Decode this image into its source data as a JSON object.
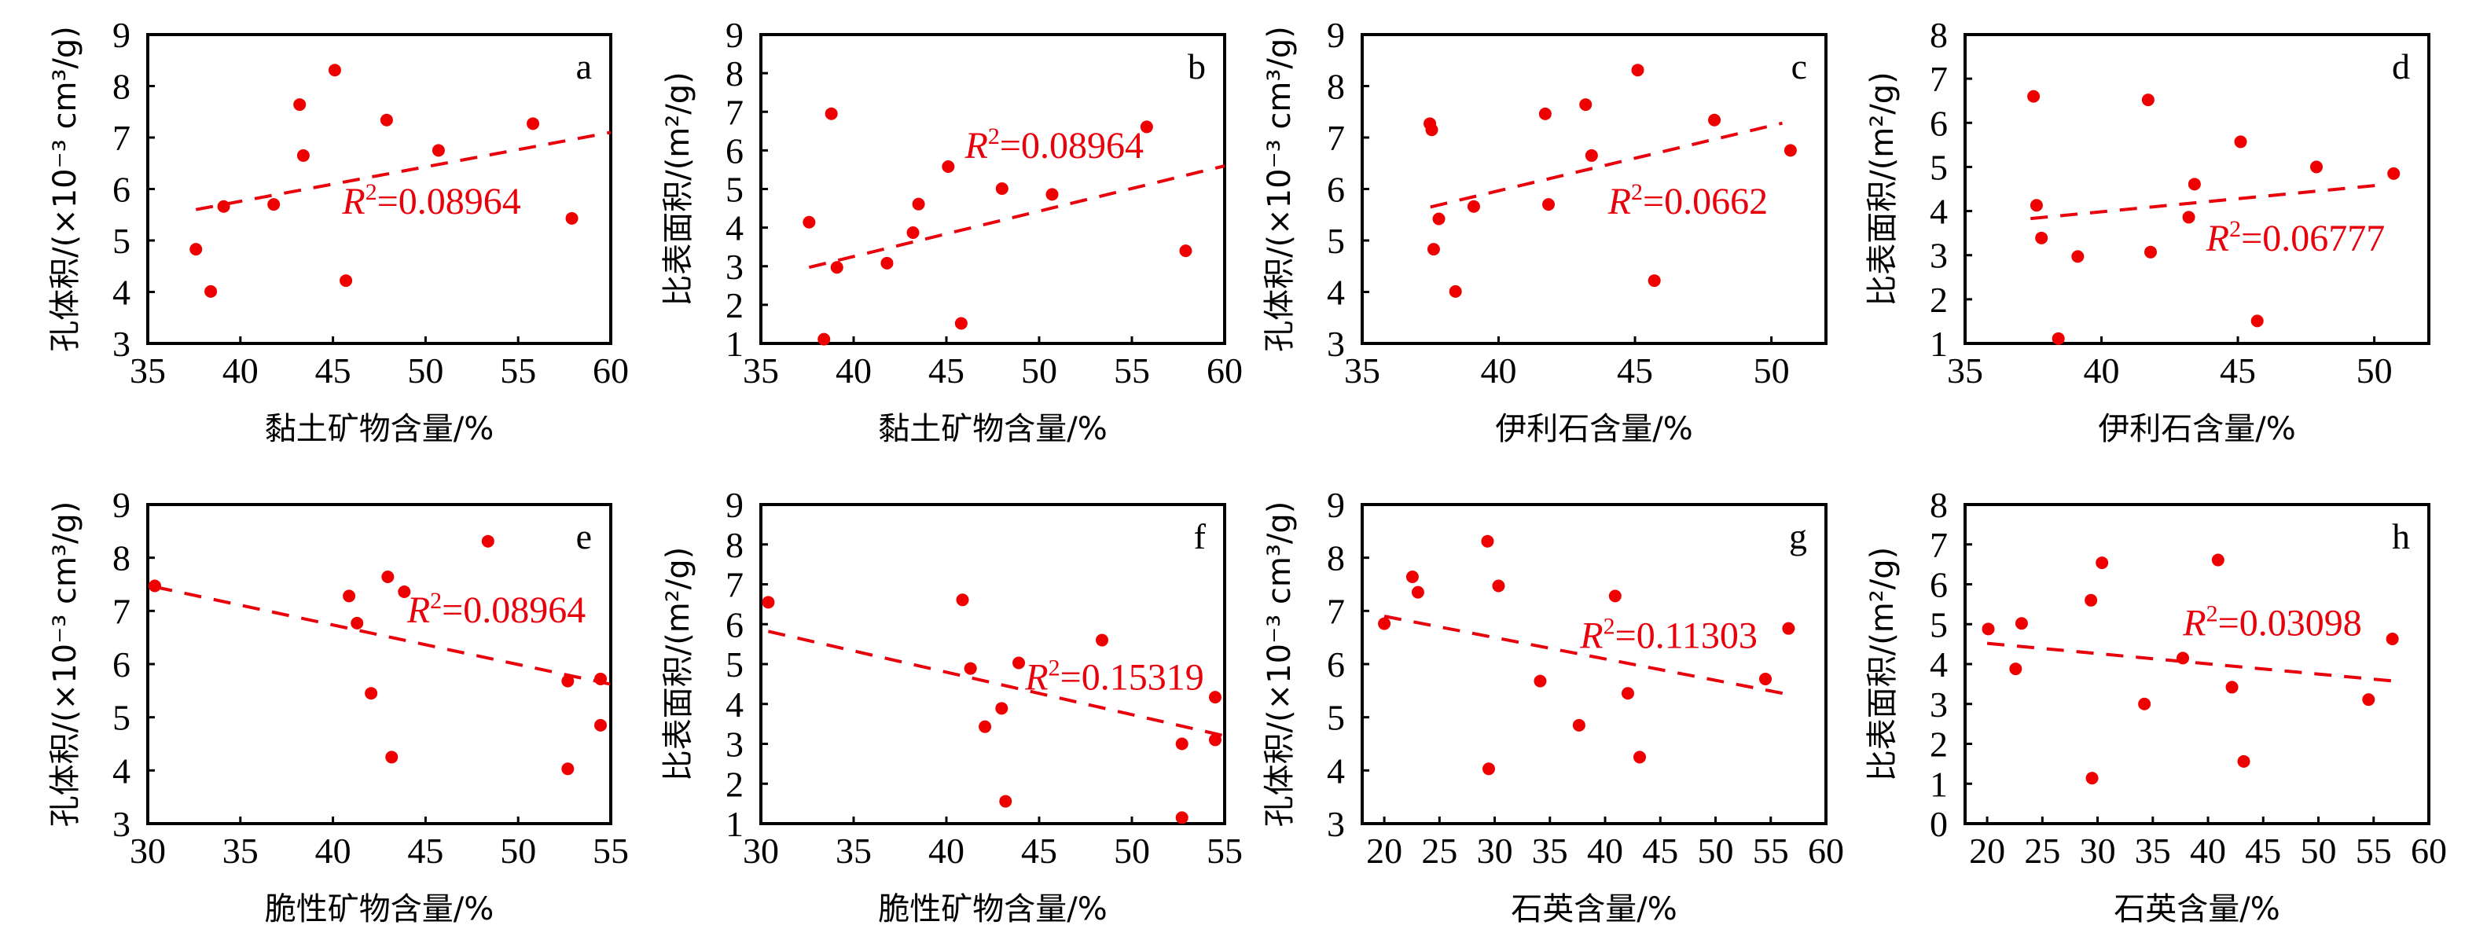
{
  "chart_data": [
    {
      "id": "a",
      "type": "scatter",
      "panel_label": "a",
      "xlabel": "黏土矿物含量/%",
      "ylabel": "孔体积/(×10⁻³ cm³/g)",
      "xlim": [
        35,
        60
      ],
      "ylim": [
        3,
        9
      ],
      "xticks": [
        35,
        40,
        45,
        50,
        55,
        60
      ],
      "yticks": [
        3,
        4,
        5,
        6,
        7,
        8,
        9
      ],
      "r2_text": "R²=0.08964",
      "r2_prefix": "R",
      "r2_sup": "2",
      "r2_value": "=0.08964",
      "trendline": {
        "x": [
          37.6,
          60
        ],
        "y": [
          5.6,
          7.1
        ]
      },
      "points": [
        [
          37.6,
          4.83
        ],
        [
          38.4,
          4.01
        ],
        [
          39.1,
          5.66
        ],
        [
          41.8,
          5.7
        ],
        [
          43.2,
          7.64
        ],
        [
          43.4,
          6.65
        ],
        [
          45.1,
          8.31
        ],
        [
          45.7,
          4.22
        ],
        [
          47.9,
          7.34
        ],
        [
          50.7,
          6.75
        ],
        [
          55.8,
          7.27
        ],
        [
          57.9,
          5.43
        ]
      ]
    },
    {
      "id": "b",
      "type": "scatter",
      "panel_label": "b",
      "xlabel": "黏土矿物含量/%",
      "ylabel": "比表面积/(m²/g)",
      "xlim": [
        35,
        60
      ],
      "ylim": [
        1,
        9
      ],
      "xticks": [
        35,
        40,
        45,
        50,
        55,
        60
      ],
      "yticks": [
        1,
        2,
        3,
        4,
        5,
        6,
        7,
        8,
        9
      ],
      "r2_text": "R²=0.08964",
      "r2_prefix": "R",
      "r2_sup": "2",
      "r2_value": "=0.08964",
      "trendline": {
        "x": [
          37.6,
          60
        ],
        "y": [
          2.97,
          5.6
        ]
      },
      "points": [
        [
          37.6,
          4.14
        ],
        [
          38.4,
          1.11
        ],
        [
          38.8,
          6.95
        ],
        [
          39.1,
          2.97
        ],
        [
          41.8,
          3.08
        ],
        [
          43.2,
          3.87
        ],
        [
          43.5,
          4.61
        ],
        [
          45.1,
          5.58
        ],
        [
          45.8,
          1.52
        ],
        [
          48.0,
          5.01
        ],
        [
          50.7,
          4.86
        ],
        [
          55.8,
          6.61
        ],
        [
          57.9,
          3.4
        ]
      ]
    },
    {
      "id": "c",
      "type": "scatter",
      "panel_label": "c",
      "xlabel": "伊利石含量/%",
      "ylabel": "孔体积/(×10⁻³ cm³/g)",
      "xlim": [
        35,
        52
      ],
      "ylim": [
        3,
        9
      ],
      "xticks": [
        35,
        40,
        45,
        50
      ],
      "yticks": [
        3,
        4,
        5,
        6,
        7,
        8,
        9
      ],
      "r2_text": "R²=0.0662",
      "r2_prefix": "R",
      "r2_sup": "2",
      "r2_value": "=0.0662",
      "trendline": {
        "x": [
          37.5,
          50.4
        ],
        "y": [
          5.65,
          7.28
        ]
      },
      "points": [
        [
          37.48,
          7.27
        ],
        [
          37.55,
          7.15
        ],
        [
          37.81,
          5.42
        ],
        [
          37.62,
          4.83
        ],
        [
          38.42,
          4.01
        ],
        [
          39.09,
          5.66
        ],
        [
          41.71,
          7.46
        ],
        [
          41.83,
          5.7
        ],
        [
          43.19,
          7.64
        ],
        [
          43.41,
          6.65
        ],
        [
          45.1,
          8.31
        ],
        [
          45.71,
          4.22
        ],
        [
          47.91,
          7.34
        ],
        [
          50.7,
          6.75
        ]
      ]
    },
    {
      "id": "d",
      "type": "scatter",
      "panel_label": "d",
      "xlabel": "伊利石含量/%",
      "ylabel": "比表面积/(m²/g)",
      "xlim": [
        35,
        52
      ],
      "ylim": [
        1,
        8
      ],
      "xticks": [
        35,
        40,
        45,
        50
      ],
      "yticks": [
        1,
        2,
        3,
        4,
        5,
        6,
        7,
        8
      ],
      "r2_text": "R²=0.06777",
      "r2_prefix": "R",
      "r2_sup": "2",
      "r2_value": "=0.06777",
      "trendline": {
        "x": [
          37.4,
          50.4
        ],
        "y": [
          3.83,
          4.6
        ]
      },
      "points": [
        [
          37.51,
          6.6
        ],
        [
          37.62,
          4.13
        ],
        [
          37.8,
          3.39
        ],
        [
          38.42,
          1.11
        ],
        [
          39.13,
          2.97
        ],
        [
          41.71,
          6.52
        ],
        [
          41.8,
          3.07
        ],
        [
          43.2,
          3.86
        ],
        [
          43.41,
          4.61
        ],
        [
          45.1,
          5.57
        ],
        [
          45.71,
          1.51
        ],
        [
          47.88,
          5.0
        ],
        [
          50.71,
          4.85
        ]
      ]
    },
    {
      "id": "e",
      "type": "scatter",
      "panel_label": "e",
      "xlabel": "脆性矿物含量/%",
      "ylabel": "孔体积/(×10⁻³ cm³/g)",
      "xlim": [
        30,
        55
      ],
      "ylim": [
        3,
        9
      ],
      "xticks": [
        30,
        35,
        40,
        45,
        50,
        55
      ],
      "yticks": [
        3,
        4,
        5,
        6,
        7,
        8,
        9
      ],
      "r2_text": "R²=0.08964",
      "r2_prefix": "R",
      "r2_sup": "2",
      "r2_value": "=0.08964",
      "trendline": {
        "x": [
          30.4,
          55
        ],
        "y": [
          7.45,
          5.62
        ]
      },
      "points": [
        [
          30.38,
          7.47
        ],
        [
          40.87,
          7.28
        ],
        [
          41.3,
          6.77
        ],
        [
          42.06,
          5.45
        ],
        [
          42.96,
          7.64
        ],
        [
          43.17,
          4.25
        ],
        [
          43.85,
          7.36
        ],
        [
          48.37,
          8.31
        ],
        [
          52.68,
          5.68
        ],
        [
          52.68,
          4.03
        ],
        [
          54.45,
          5.72
        ],
        [
          54.45,
          4.85
        ]
      ]
    },
    {
      "id": "f",
      "type": "scatter",
      "panel_label": "f",
      "xlabel": "脆性矿物含量/%",
      "ylabel": "比表面积/(m²/g)",
      "xlim": [
        30,
        55
      ],
      "ylim": [
        1,
        9
      ],
      "xticks": [
        30,
        35,
        40,
        45,
        50,
        55
      ],
      "yticks": [
        1,
        2,
        3,
        4,
        5,
        6,
        7,
        8,
        9
      ],
      "r2_text": "R²=0.15319",
      "r2_prefix": "R",
      "r2_sup": "2",
      "r2_value": "=0.15319",
      "trendline": {
        "x": [
          30.4,
          55
        ],
        "y": [
          5.82,
          3.2
        ]
      },
      "points": [
        [
          30.4,
          6.55
        ],
        [
          40.87,
          6.61
        ],
        [
          41.3,
          4.89
        ],
        [
          42.08,
          3.43
        ],
        [
          42.98,
          3.89
        ],
        [
          43.19,
          1.56
        ],
        [
          43.9,
          5.03
        ],
        [
          48.39,
          5.6
        ],
        [
          52.7,
          3.0
        ],
        [
          52.7,
          1.15
        ],
        [
          54.49,
          4.17
        ],
        [
          54.49,
          3.1
        ]
      ]
    },
    {
      "id": "g",
      "type": "scatter",
      "panel_label": "g",
      "xlabel": "石英含量/%",
      "ylabel": "孔体积/(×10⁻³ cm³/g)",
      "xlim": [
        18,
        60
      ],
      "ylim": [
        3,
        9
      ],
      "xticks": [
        20,
        25,
        30,
        35,
        40,
        45,
        50,
        55,
        60
      ],
      "yticks": [
        3,
        4,
        5,
        6,
        7,
        8,
        9
      ],
      "r2_text": "R²=0.11303",
      "r2_prefix": "R",
      "r2_sup": "2",
      "r2_value": "=0.11303",
      "trendline": {
        "x": [
          20.0,
          56.6
        ],
        "y": [
          6.9,
          5.43
        ]
      },
      "points": [
        [
          20.0,
          6.76
        ],
        [
          22.55,
          7.64
        ],
        [
          23.05,
          7.35
        ],
        [
          29.35,
          8.31
        ],
        [
          29.46,
          4.03
        ],
        [
          30.35,
          7.47
        ],
        [
          34.12,
          5.68
        ],
        [
          37.64,
          4.85
        ],
        [
          40.91,
          7.28
        ],
        [
          42.06,
          5.45
        ],
        [
          43.13,
          4.25
        ],
        [
          54.52,
          5.72
        ],
        [
          56.61,
          6.67
        ]
      ]
    },
    {
      "id": "h",
      "type": "scatter",
      "panel_label": "h",
      "xlabel": "石英含量/%",
      "ylabel": "比表面积/(m²/g)",
      "xlim": [
        18,
        60
      ],
      "ylim": [
        0,
        8
      ],
      "xticks": [
        20,
        25,
        30,
        35,
        40,
        45,
        50,
        55,
        60
      ],
      "yticks": [
        0,
        1,
        2,
        3,
        4,
        5,
        6,
        7,
        8
      ],
      "r2_text": "R²=0.03098",
      "r2_prefix": "R",
      "r2_sup": "2",
      "r2_value": "=0.03098",
      "trendline": {
        "x": [
          20.0,
          56.6
        ],
        "y": [
          4.52,
          3.58
        ]
      },
      "points": [
        [
          20.1,
          4.88
        ],
        [
          22.58,
          3.88
        ],
        [
          23.12,
          5.02
        ],
        [
          29.4,
          5.6
        ],
        [
          29.5,
          1.14
        ],
        [
          30.4,
          6.54
        ],
        [
          34.24,
          3.0
        ],
        [
          37.72,
          4.15
        ],
        [
          40.91,
          6.61
        ],
        [
          42.17,
          3.42
        ],
        [
          43.24,
          1.56
        ],
        [
          54.54,
          3.11
        ],
        [
          56.7,
          4.63
        ]
      ]
    }
  ],
  "colors": {
    "points": "#ee0000",
    "trendline": "#e8000b",
    "r2_text": "#e8000b",
    "axes": "#000000"
  }
}
